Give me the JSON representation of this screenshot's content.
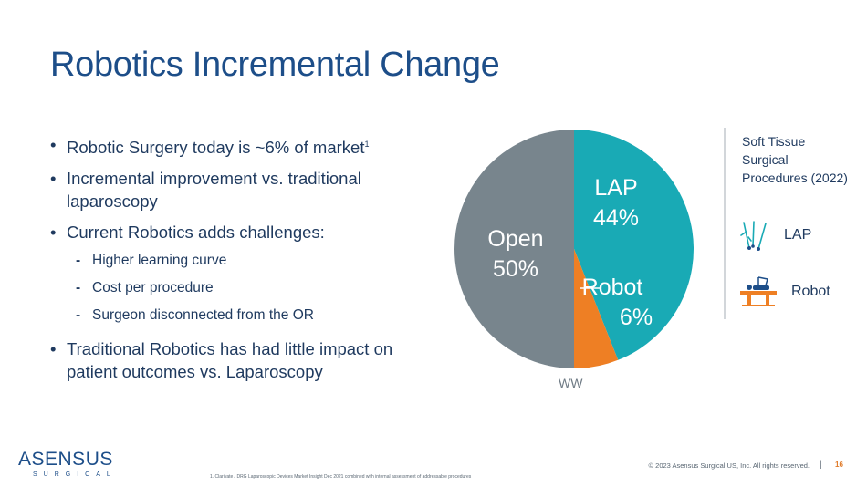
{
  "title": "Robotics Incremental Change",
  "bullets": [
    {
      "text": "Robotic Surgery today is ~6% of market",
      "sup": "1"
    },
    {
      "text": "Incremental improvement vs. traditional laparoscopy"
    },
    {
      "text": "Current Robotics adds challenges:",
      "sub": [
        "Higher learning curve",
        "Cost per procedure",
        "Surgeon disconnected from the OR"
      ]
    },
    {
      "text": "Traditional Robotics has had little impact on patient outcomes vs. Laparoscopy"
    }
  ],
  "chart_data": {
    "type": "pie",
    "title": "",
    "slices": [
      {
        "label": "LAP",
        "value": 44,
        "display": "44%",
        "color": "#19aab5"
      },
      {
        "label": "Robot",
        "value": 6,
        "display": "6%",
        "color": "#ee7f24"
      },
      {
        "label": "Open",
        "value": 50,
        "display": "50%",
        "color": "#78858d"
      }
    ],
    "caption": "WW"
  },
  "legend": {
    "title": "Soft Tissue Surgical Procedures (2022)",
    "items": [
      {
        "label": "LAP",
        "icon": "laparoscopic-instruments-icon"
      },
      {
        "label": "Robot",
        "icon": "surgical-robot-icon"
      }
    ]
  },
  "logo": {
    "name": "ASENSUS",
    "sub": "SURGICAL"
  },
  "footnote": "1. Clarivate / DRG Laparoscopic Devices Market Insight Dec 2021 combined with internal assessment of addressable procedures",
  "copyright": "© 2023 Asensus Surgical US, Inc. All rights reserved.",
  "separator": "|",
  "page_number": "16"
}
